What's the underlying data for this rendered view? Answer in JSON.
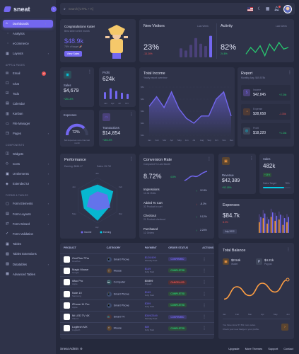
{
  "brand": {
    "name": "sneat"
  },
  "search": {
    "placeholder": "Search [CTRL + K]"
  },
  "sidebar": {
    "items": [
      {
        "label": "Dashboards",
        "type": "main",
        "icon": "⌂",
        "active": true,
        "chev": true
      },
      {
        "label": "Analytics",
        "type": "sub"
      },
      {
        "label": "eCommerce",
        "type": "sub"
      },
      {
        "label": "Layouts",
        "type": "main",
        "icon": "▦",
        "chev": true
      },
      {
        "label": "APPS & PAGES",
        "type": "head"
      },
      {
        "label": "Email",
        "type": "main",
        "icon": "✉",
        "badge": "4"
      },
      {
        "label": "Chat",
        "type": "main",
        "icon": "☐"
      },
      {
        "label": "Todo",
        "type": "main",
        "icon": "☑"
      },
      {
        "label": "Calendar",
        "type": "main",
        "icon": "▤"
      },
      {
        "label": "Kanban",
        "type": "main",
        "icon": "▥"
      },
      {
        "label": "File Manager",
        "type": "main",
        "icon": "▭"
      },
      {
        "label": "Pages",
        "type": "main",
        "icon": "❐",
        "chev": true
      },
      {
        "label": "COMPONENTS",
        "type": "head"
      },
      {
        "label": "Widgets",
        "type": "main",
        "icon": "◫"
      },
      {
        "label": "Icons",
        "type": "main",
        "icon": "◇",
        "chev": true
      },
      {
        "label": "UI Elements",
        "type": "main",
        "icon": "▣",
        "chev": true
      },
      {
        "label": "Extended UI",
        "type": "main",
        "icon": "◈",
        "chev": true
      },
      {
        "label": "FORMS & TABLES",
        "type": "head"
      },
      {
        "label": "Form Elements",
        "type": "main",
        "icon": "▢",
        "chev": true
      },
      {
        "label": "Form Layouts",
        "type": "main",
        "icon": "▤",
        "chev": true
      },
      {
        "label": "Form Wizard",
        "type": "main",
        "icon": "⇄",
        "chev": true
      },
      {
        "label": "Form Validation",
        "type": "main",
        "icon": "✓"
      },
      {
        "label": "Tables",
        "type": "main",
        "icon": "▦"
      },
      {
        "label": "Tables Extensions",
        "type": "main",
        "icon": "▧"
      },
      {
        "label": "Datatables",
        "type": "main",
        "icon": "▨",
        "chev": true
      },
      {
        "label": "Advanced Tables",
        "type": "main",
        "icon": "▩"
      }
    ]
  },
  "congrats": {
    "title": "Congratulations Katie!",
    "subtitle": "Best seller of the month",
    "amount": "$48.9k",
    "note": "78% of target 🚀",
    "button": "View Sales"
  },
  "visitors": {
    "title": "New Visitors",
    "period": "Last Week",
    "value": "23%",
    "change": "-13.24%",
    "bars": [
      40,
      30,
      55,
      85,
      60,
      50,
      95
    ]
  },
  "activity": {
    "title": "Activity",
    "period": "Last Week",
    "value": "82%",
    "change": "24.8%",
    "line": [
      50,
      30,
      45,
      25,
      55,
      20,
      40,
      15,
      35,
      30
    ]
  },
  "sales": {
    "label": "Sales",
    "value": "$4,679",
    "change": "+28.14%"
  },
  "profit": {
    "label": "Profit",
    "value": "624k",
    "bars": [
      55,
      85,
      65,
      50,
      40
    ],
    "months": [
      "Jan",
      "Apr",
      "Jul",
      "Oct"
    ]
  },
  "income": {
    "title": "Total Income",
    "subtitle": "Yearly report overview",
    "months": [
      "Jan",
      "Feb",
      "Mar",
      "Apr",
      "May",
      "Jun",
      "Jul",
      "Aug",
      "Sep",
      "Oct",
      "Nov",
      "Dec"
    ],
    "yticks": [
      "$5k",
      "$4k",
      "$3k",
      "$2k",
      "$1k"
    ],
    "values": [
      3400,
      4200,
      3300,
      4600,
      3200,
      2400,
      2000,
      2600,
      2600,
      4000,
      4600,
      2600
    ]
  },
  "report": {
    "title": "Report",
    "subtitle": "Monthly Avg. $45.578k",
    "items": [
      {
        "label": "Income",
        "value": "$42,845",
        "change": "+2.34k",
        "color": "#28c76f",
        "ic": "$",
        "bg": "#4a4179",
        "fg": "#7367f0"
      },
      {
        "label": "Expense",
        "value": "$38,658",
        "change": "-1.15k",
        "color": "#ea5455",
        "ic": "◔",
        "bg": "#4d3a36",
        "fg": "#ff9f43"
      },
      {
        "label": "Profit",
        "value": "$18,220",
        "change": "+1.34k",
        "color": "#28c76f",
        "ic": "◎",
        "bg": "#3c4659",
        "fg": "#00cfe8"
      }
    ]
  },
  "expenses_small": {
    "label": "Expenses",
    "value": "72%",
    "note": "$2k Expenses more than last month"
  },
  "transactions": {
    "label": "Transactions",
    "value": "$14,854",
    "change": "+28.14%"
  },
  "performance": {
    "title": "Performance",
    "earning": "Earning: $846.17",
    "sales": "Sales: 25.7M",
    "axes": [
      "Jan",
      "Feb",
      "Mar",
      "Apr",
      "May",
      "Jun"
    ],
    "income": [
      70,
      80,
      60,
      90,
      70,
      85
    ],
    "earning_s": [
      40,
      50,
      65,
      45,
      55,
      40
    ],
    "legend": [
      "Income",
      "Earning"
    ]
  },
  "conversion": {
    "title": "Conversion Rate",
    "subtitle": "Compared To Last Month",
    "value": "8.72%",
    "change": "4.8%",
    "items": [
      {
        "label": "Impressions",
        "sub": "12.4k Visits",
        "change": "12.8%",
        "color": "#28c76f",
        "up": true
      },
      {
        "label": "Added To Cart",
        "sub": "32 Product in cart",
        "change": "-8.3%",
        "color": "#ea5455",
        "up": false
      },
      {
        "label": "Checkout",
        "sub": "21 Product checkout",
        "change": "9.12%",
        "color": "#28c76f",
        "up": true
      },
      {
        "label": "Purchased",
        "sub": "12 Orders",
        "change": "2.24%",
        "color": "#28c76f",
        "up": true
      }
    ]
  },
  "revenue": {
    "label": "Revenue",
    "value": "$42,389",
    "change": "+52.18%"
  },
  "sales2": {
    "label": "Sales",
    "value": "482k",
    "badge": "+34%",
    "target_label": "Sales Target",
    "target": "78%"
  },
  "expenses": {
    "title": "Expenses",
    "value": "$84.7k",
    "change": "8.2%",
    "period": "July 2022",
    "bars": [
      [
        40,
        70
      ],
      [
        55,
        85
      ],
      [
        35,
        60
      ],
      [
        60,
        90
      ],
      [
        45,
        75
      ],
      [
        50,
        80
      ],
      [
        30,
        65
      ],
      [
        40,
        70
      ]
    ]
  },
  "products": {
    "headers": [
      "PRODUCT",
      "CATEGORY",
      "PAYMENT",
      "ORDER STATUS",
      "ACTIONS"
    ],
    "rows": [
      {
        "name": "OnePlus 7Pro",
        "brand": "OnePlus",
        "cat": "Smart Phone",
        "cic": "📱",
        "cbg": "#3e4c6e",
        "price": "$120/499",
        "pay": "Partially Paid",
        "status": "CONFIRMED",
        "sc": "#7367f0",
        "sb": "#3b3a69"
      },
      {
        "name": "Magic Mouse",
        "brand": "Google",
        "cat": "Mouse",
        "cic": "🖱",
        "cbg": "#5b4530",
        "price": "$149",
        "pay": "Fully Paid",
        "status": "COMPLETED",
        "sc": "#28c76f",
        "sb": "#2f4b3d"
      },
      {
        "name": "iMac Pro",
        "brand": "Apple",
        "cat": "Computer",
        "cic": "💻",
        "cbg": "#2d4d59",
        "price": "$0/899",
        "pay": "Unpaid",
        "status": "CANCELLED",
        "sc": "#ea5455",
        "sb": "#4f3036"
      },
      {
        "name": "Note 10",
        "brand": "Samsung",
        "cat": "Smart Phone",
        "cic": "📱",
        "cbg": "#3e4c6e",
        "price": "$169",
        "pay": "Fully Paid",
        "status": "COMPLETED",
        "sc": "#28c76f",
        "sb": "#2f4b3d"
      },
      {
        "name": "iPhone 11 Pro",
        "brand": "Apple",
        "cat": "Smart Phone",
        "cic": "📱",
        "cbg": "#3e4c6e",
        "price": "$399",
        "pay": "Fully Paid",
        "status": "COMPLETED",
        "sc": "#28c76f",
        "sb": "#2f4b3d"
      },
      {
        "name": "Mi LED TV 4X",
        "brand": "Xiaomi",
        "cat": "Smart TV",
        "cic": "📺",
        "cbg": "#4b3337",
        "price": "$349/2549",
        "pay": "Partially Paid",
        "status": "CONFIRMED",
        "sc": "#7367f0",
        "sb": "#3b3a69"
      },
      {
        "name": "Logitech MX",
        "brand": "Logitech",
        "cat": "Mouse",
        "cic": "🖱",
        "cbg": "#5b4530",
        "price": "$89",
        "pay": "Fully Paid",
        "status": "COMPLETED",
        "sc": "#28c76f",
        "sb": "#2f4b3d"
      }
    ]
  },
  "balance": {
    "title": "Total Balance",
    "wallet_value": "$2.54k",
    "wallet_label": "Wallet",
    "paypal_value": "$4.21k",
    "paypal_label": "Paypal",
    "months": [
      "Jan",
      "Feb",
      "Mar",
      "Apr",
      "May",
      "Jun"
    ],
    "line": [
      25,
      60,
      35,
      70,
      45,
      80
    ],
    "note1": "You have done 57.6% more sales.",
    "note2": "Check your new badge in your profile."
  },
  "footer": {
    "brand": "Sneat Admin",
    "links": [
      "Upgrade",
      "More Themes",
      "Support",
      "Contact"
    ]
  },
  "colors": {
    "primary": "#7367f0",
    "success": "#28c76f",
    "danger": "#ea5455",
    "warning": "#ff9f43",
    "info": "#00cfe8",
    "bg": "#25293c",
    "card": "#2f3349"
  }
}
